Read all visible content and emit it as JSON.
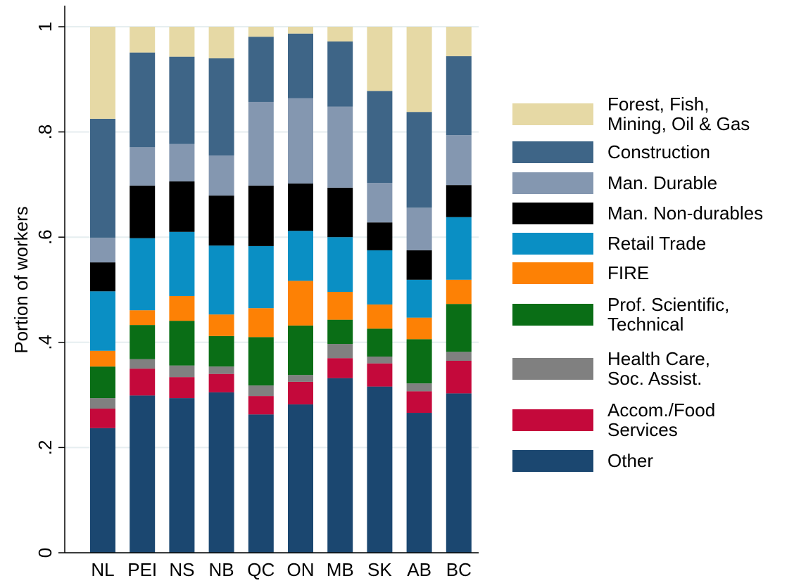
{
  "chart_data": {
    "type": "stacked_bar",
    "y_label": "Portion of workers",
    "categories": [
      "NL",
      "PEI",
      "NS",
      "NB",
      "QC",
      "ON",
      "MB",
      "SK",
      "AB",
      "BC"
    ],
    "ylim": [
      0,
      1
    ],
    "yticks": [
      0,
      {
        "value": 0.2,
        "label": ".2"
      },
      {
        "value": 0.4,
        "label": ".4"
      },
      {
        "value": 0.6,
        "label": ".6"
      },
      {
        "value": 0.8,
        "label": ".8"
      },
      1
    ],
    "grid": true,
    "legend": "right",
    "series": [
      {
        "name": "Other",
        "color": "#1b4770",
        "values": [
          0.237,
          0.299,
          0.294,
          0.305,
          0.263,
          0.282,
          0.332,
          0.316,
          0.266,
          0.303
        ]
      },
      {
        "name": "Accom./Food\nServices",
        "color": "#c4093b",
        "values": [
          0.037,
          0.051,
          0.04,
          0.035,
          0.035,
          0.043,
          0.038,
          0.044,
          0.041,
          0.062
        ]
      },
      {
        "name": "Health Care,\nSoc. Assist.",
        "color": "#808080",
        "values": [
          0.02,
          0.018,
          0.022,
          0.014,
          0.02,
          0.013,
          0.027,
          0.013,
          0.015,
          0.017
        ]
      },
      {
        "name": "Prof. Scientific,\nTechnical",
        "color": "#0a6e16",
        "values": [
          0.06,
          0.065,
          0.085,
          0.058,
          0.092,
          0.094,
          0.046,
          0.053,
          0.084,
          0.091
        ]
      },
      {
        "name": "FIRE",
        "color": "#fd8105",
        "values": [
          0.03,
          0.028,
          0.047,
          0.041,
          0.055,
          0.085,
          0.053,
          0.046,
          0.041,
          0.046
        ]
      },
      {
        "name": "Retail Trade",
        "color": "#0a8fc4",
        "values": [
          0.113,
          0.137,
          0.122,
          0.131,
          0.118,
          0.095,
          0.104,
          0.103,
          0.072,
          0.119
        ]
      },
      {
        "name": "Man. Non-durables",
        "color": "#000000",
        "values": [
          0.055,
          0.1,
          0.096,
          0.095,
          0.115,
          0.09,
          0.094,
          0.053,
          0.056,
          0.061
        ]
      },
      {
        "name": "Man. Durable",
        "color": "#8497b0",
        "values": [
          0.047,
          0.073,
          0.071,
          0.076,
          0.159,
          0.162,
          0.154,
          0.075,
          0.081,
          0.095
        ]
      },
      {
        "name": "Construction",
        "color": "#3e6587",
        "values": [
          0.226,
          0.18,
          0.166,
          0.185,
          0.124,
          0.123,
          0.124,
          0.175,
          0.182,
          0.15
        ]
      },
      {
        "name": "Forest, Fish,\nMining, Oil & Gas",
        "color": "#e6d9a5",
        "values": [
          0.175,
          0.049,
          0.057,
          0.06,
          0.019,
          0.013,
          0.028,
          0.122,
          0.162,
          0.056
        ]
      }
    ]
  }
}
